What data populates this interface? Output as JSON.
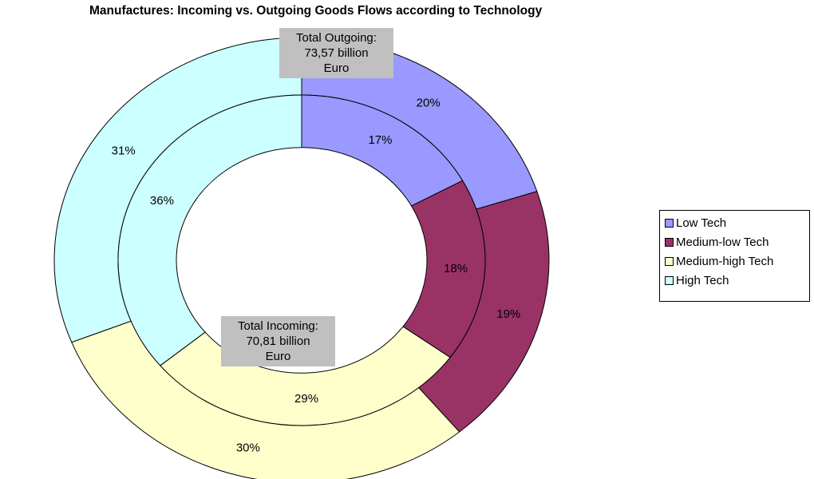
{
  "chart_data": {
    "type": "doughnut",
    "title": "Manufactures: Incoming vs. Outgoing Goods Flows according to Technology",
    "categories": [
      "Low Tech",
      "Medium-low Tech",
      "Medium-high Tech",
      "High Tech"
    ],
    "colors": [
      "#9999ff",
      "#993366",
      "#ffffcc",
      "#ccffff"
    ],
    "series": [
      {
        "values": [
          20,
          19,
          30,
          31
        ],
        "value_labels": [
          "20%",
          "19%",
          "30%",
          "31%"
        ]
      },
      {
        "values": [
          17,
          18,
          29,
          36
        ],
        "value_labels": [
          "17%",
          "18%",
          "29%",
          "36%"
        ]
      }
    ],
    "annotations": [
      "Total Outgoing: 73,57 billion Euro",
      "Total Incoming: 70,81 billion Euro"
    ],
    "legend": "right"
  }
}
